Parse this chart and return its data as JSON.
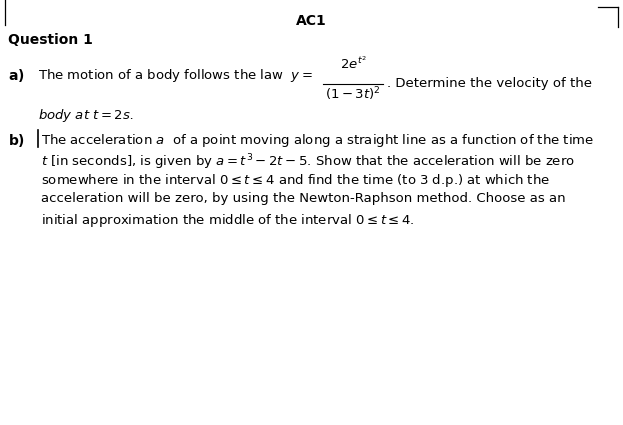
{
  "title": "AC1",
  "question_label": "Question 1",
  "bg_color": "#ffffff",
  "text_color": "#000000",
  "font_size_title": 10,
  "font_size_body": 9.5,
  "font_size_question": 10
}
